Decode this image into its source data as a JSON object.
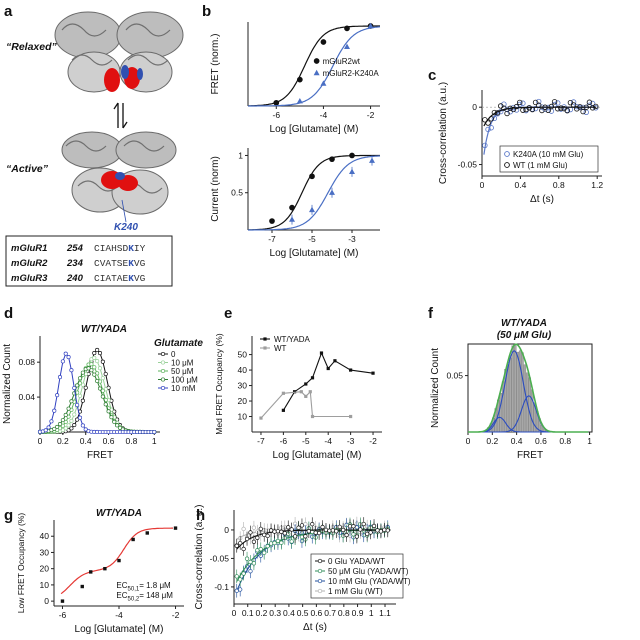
{
  "panel_labels": {
    "a": "a",
    "b": "b",
    "c": "c",
    "d": "d",
    "e": "e",
    "f": "f",
    "g": "g",
    "h": "h"
  },
  "panel_a": {
    "relaxed_label": "“Relaxed”",
    "active_label": "“Active”",
    "residue_label": "K240",
    "colors": {
      "protein": "#9a9a9a",
      "red": "#e01010",
      "blue": "#3050b0"
    },
    "alignment": [
      {
        "name": "mGluR1",
        "num": "254",
        "pre": "CIAHSD",
        "mark": "K",
        "post": "IY"
      },
      {
        "name": "mGluR2",
        "num": "234",
        "pre": "CVATSE",
        "mark": "K",
        "post": "VG"
      },
      {
        "name": "mGluR3",
        "num": "240",
        "pre": "CIATAE",
        "mark": "K",
        "post": "VG"
      }
    ]
  },
  "chart_data": [
    {
      "id": "b_top",
      "type": "line",
      "ylabel": "FRET (norm.)",
      "xlabel": "Log [Glutamate] (M)",
      "xlim": [
        -7.2,
        -1.6
      ],
      "ylim": [
        0,
        1.05
      ],
      "xticks": [
        -6,
        -4,
        -2
      ],
      "yticks": [],
      "series": [
        {
          "name": "mGluR2wt",
          "color": "#111111",
          "marker": "circle",
          "ec50": -4.8,
          "hill": 1.1,
          "x": [
            -6,
            -5,
            -4,
            -3,
            -2
          ],
          "y": [
            0.04,
            0.33,
            0.8,
            0.97,
            1.0
          ]
        },
        {
          "name": "mGluR2-K240A",
          "color": "#4a6fc4",
          "marker": "triangle",
          "ec50": -3.6,
          "hill": 1.0,
          "x": [
            -5,
            -4,
            -3,
            -2
          ],
          "y": [
            0.06,
            0.28,
            0.74,
            1.0
          ]
        }
      ]
    },
    {
      "id": "b_bot",
      "type": "line",
      "ylabel": "Current (norm)",
      "xlabel": "Log [Glutamate] (M)",
      "xlim": [
        -8.2,
        -1.6
      ],
      "ylim": [
        0,
        1.1
      ],
      "xticks": [
        -7,
        -5,
        -3
      ],
      "yticks": [
        0.5,
        1.0
      ],
      "series": [
        {
          "name": "mGluR2wt",
          "color": "#111111",
          "marker": "circle",
          "ec50": -5.5,
          "hill": 1.0,
          "x": [
            -7,
            -6,
            -5,
            -4,
            -3
          ],
          "y": [
            0.12,
            0.3,
            0.72,
            0.95,
            1.0
          ]
        },
        {
          "name": "mGluR2-K240A",
          "color": "#4a6fc4",
          "marker": "triangle",
          "ec50": -4.2,
          "hill": 0.85,
          "x": [
            -6,
            -5,
            -4,
            -3,
            -2
          ],
          "y": [
            0.14,
            0.27,
            0.5,
            0.78,
            0.93
          ]
        }
      ]
    },
    {
      "id": "c",
      "type": "scatter",
      "ylabel": "Cross-correlation (a.u.)",
      "xlabel": "Δt (s)",
      "xlim": [
        0,
        1.25
      ],
      "ylim": [
        -0.06,
        0.015
      ],
      "xticks": [
        0,
        0.4,
        0.8,
        1.2
      ],
      "yticks": [
        -0.05,
        0.0
      ],
      "series": [
        {
          "name": "K240A (10 mM Glu)",
          "color": "#5a78c8",
          "amp": -0.055,
          "tau": 0.07
        },
        {
          "name": "WT (1 mM Glu)",
          "color": "#111111",
          "amp": -0.02,
          "tau": 0.1
        }
      ]
    },
    {
      "id": "d",
      "type": "line",
      "title": "WT/YADA",
      "ylabel": "Normalized Count",
      "xlabel": "FRET",
      "xlim": [
        0,
        1.05
      ],
      "ylim": [
        0,
        0.11
      ],
      "xticks": [
        0,
        0.2,
        0.4,
        0.6,
        0.8,
        1.0
      ],
      "yticks": [
        0.04,
        0.08
      ],
      "legend_title": "Glutamate",
      "series": [
        {
          "name": "0",
          "color": "#111111",
          "mu": 0.5,
          "sigma": 0.09,
          "peak": 0.094
        },
        {
          "name": "10 μM",
          "color": "#9ad19a",
          "mu": 0.47,
          "sigma": 0.1,
          "peak": 0.085
        },
        {
          "name": "50 μM",
          "color": "#5db35d",
          "mu": 0.44,
          "sigma": 0.11,
          "peak": 0.078
        },
        {
          "name": "100 μM",
          "color": "#2e7d32",
          "mu": 0.42,
          "sigma": 0.12,
          "peak": 0.073
        },
        {
          "name": "10 mM",
          "color": "#3040c0",
          "mu": 0.23,
          "sigma": 0.065,
          "peak": 0.09
        }
      ]
    },
    {
      "id": "e",
      "type": "line",
      "ylabel": "Med FRET Occupancy (%)",
      "xlabel": "Log [Glutamate] (M)",
      "xlim": [
        -7.4,
        -1.6
      ],
      "ylim": [
        0,
        62
      ],
      "xticks": [
        -7,
        -6,
        -5,
        -4,
        -3,
        -2
      ],
      "yticks": [
        10,
        20,
        30,
        40,
        50
      ],
      "series": [
        {
          "name": "WT/YADA",
          "color": "#111111",
          "x": [
            -6,
            -5.5,
            -5,
            -4.7,
            -4.3,
            -4,
            -3.7,
            -3,
            -2
          ],
          "y": [
            14,
            26,
            31,
            35,
            51,
            41,
            46,
            40,
            38
          ]
        },
        {
          "name": "WT",
          "color": "#9e9e9e",
          "x": [
            -7,
            -6,
            -5.2,
            -5,
            -4.8,
            -4.7,
            -3
          ],
          "y": [
            9,
            25,
            26,
            23,
            26,
            10,
            10
          ]
        }
      ]
    },
    {
      "id": "f",
      "type": "bar",
      "title": "WT/YADA",
      "subtitle": "(50 μM Glu)",
      "ylabel": "Normalized Count",
      "xlabel": "FRET",
      "xlim": [
        0,
        1.02
      ],
      "ylim": [
        0,
        0.078
      ],
      "xticks": [
        0,
        0.2,
        0.4,
        0.6,
        0.8,
        1.0
      ],
      "yticks": [
        0.05
      ],
      "components": [
        {
          "mu": 0.26,
          "sigma": 0.05,
          "amp": 0.013,
          "color": "#2a4cc0"
        },
        {
          "mu": 0.38,
          "sigma": 0.075,
          "amp": 0.072,
          "color": "#2a4cc0"
        },
        {
          "mu": 0.5,
          "sigma": 0.06,
          "amp": 0.032,
          "color": "#2a4cc0"
        }
      ],
      "sum_color": "#4caf50",
      "bar_color": "#a8a8a8"
    },
    {
      "id": "g",
      "type": "line",
      "title": "WT/YADA",
      "ylabel": "Low FRET Occupancy (%)",
      "xlabel": "Log [Glutamate] (M)",
      "xlim": [
        -6.3,
        -1.7
      ],
      "ylim": [
        -3,
        50
      ],
      "xticks": [
        -6,
        -4,
        -2
      ],
      "yticks": [
        0,
        10,
        20,
        30,
        40
      ],
      "x": [
        -6,
        -5.3,
        -5,
        -4.5,
        -4,
        -3.5,
        -3,
        -2
      ],
      "y": [
        0,
        9,
        18,
        20,
        25,
        38,
        42,
        45
      ],
      "color": "#111111",
      "fit_color": "#e53935",
      "annotations": [
        {
          "label": "EC",
          "sub": "50,1",
          "value": "= 1.8 μM"
        },
        {
          "label": "EC",
          "sub": "50,2",
          "value": "= 148 μM"
        }
      ]
    },
    {
      "id": "h",
      "type": "scatter",
      "ylabel": "Cross-correlation (a. u.)",
      "xlabel": "Δt (s)",
      "xlim": [
        0,
        1.18
      ],
      "ylim": [
        -0.13,
        0.035
      ],
      "xticks": [
        0,
        0.1,
        0.2,
        0.3,
        0.4,
        0.5,
        0.6,
        0.7,
        0.8,
        0.9,
        1.0,
        1.1
      ],
      "yticks": [
        -0.1,
        -0.05,
        0.0
      ],
      "series": [
        {
          "name": "0 Glu YADA/WT",
          "color": "#111111",
          "amp": -0.04,
          "tau": 0.12
        },
        {
          "name": "50 μM Glu (YADA/WT)",
          "color": "#2e8b57",
          "amp": -0.1,
          "tau": 0.2
        },
        {
          "name": "10 mM Glu (YADA/WT)",
          "color": "#1f4e9c",
          "amp": -0.12,
          "tau": 0.18
        },
        {
          "name": "1 mM Glu (WT)",
          "color": "#b0b0b0",
          "amp": -0.02,
          "tau": 0.1
        }
      ]
    }
  ]
}
